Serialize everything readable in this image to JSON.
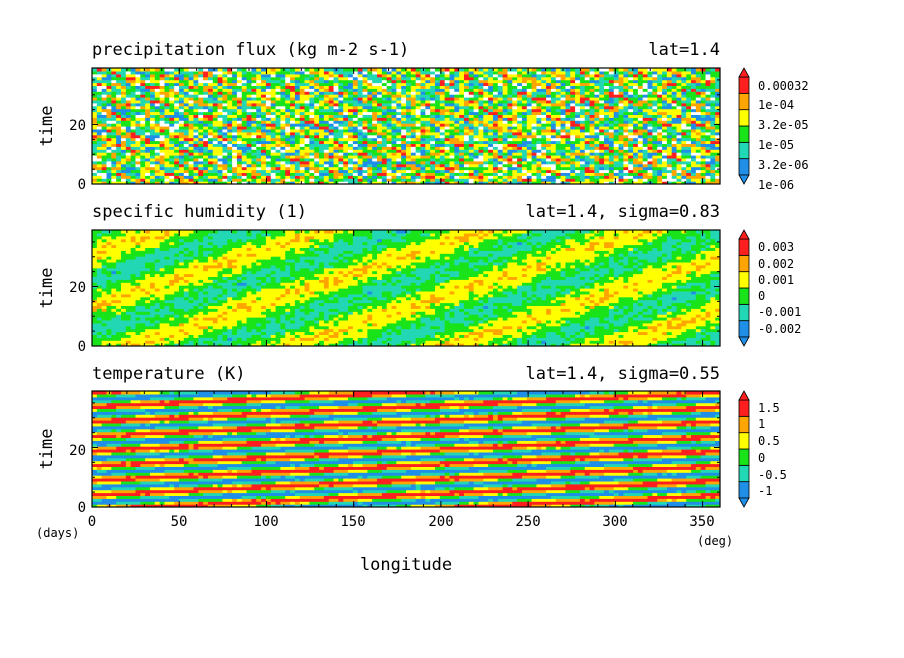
{
  "chart_data": [
    {
      "type": "heatmap",
      "title": "precipitation flux (kg m-2 s-1)",
      "subtitle": "lat=1.4",
      "ylabel": "time",
      "xlim": [
        0,
        360
      ],
      "ylim": [
        0,
        39
      ],
      "yticks": [
        "0",
        "20"
      ],
      "colorbar": {
        "levels": [
          "1e-06",
          "3.2e-06",
          "1e-05",
          "3.2e-05",
          "1e-04",
          "0.00032"
        ],
        "colors": [
          "#ffffff",
          "#1f8fe8",
          "#22d8b4",
          "#19e319",
          "#ffff00",
          "#ffa500",
          "#ff1f1f"
        ]
      }
    },
    {
      "type": "heatmap",
      "title": "specific humidity (1)",
      "subtitle": "lat=1.4, sigma=0.83",
      "ylabel": "time",
      "xlim": [
        0,
        360
      ],
      "ylim": [
        0,
        39
      ],
      "yticks": [
        "0",
        "20"
      ],
      "colorbar": {
        "levels": [
          "-0.002",
          "-0.001",
          "0",
          "0.001",
          "0.002",
          "0.003"
        ],
        "colors": [
          "#1f8fe8",
          "#22d8b4",
          "#19e319",
          "#ffff00",
          "#ffa500",
          "#ff1f1f"
        ]
      }
    },
    {
      "type": "heatmap",
      "title": "temperature (K)",
      "subtitle": "lat=1.4, sigma=0.55",
      "ylabel": "time",
      "xlabel": "longitude",
      "xunit": "(deg)",
      "yunit": "(days)",
      "xlim": [
        0,
        360
      ],
      "ylim": [
        0,
        39
      ],
      "xticks": [
        "0",
        "50",
        "100",
        "150",
        "200",
        "250",
        "300",
        "350"
      ],
      "yticks": [
        "0",
        "20"
      ],
      "colorbar": {
        "levels": [
          "-1",
          "-0.5",
          "0",
          "0.5",
          "1",
          "1.5"
        ],
        "colors": [
          "#1f8fe8",
          "#22d8b4",
          "#19e319",
          "#ffff00",
          "#ffa500",
          "#ff1f1f"
        ]
      }
    }
  ]
}
